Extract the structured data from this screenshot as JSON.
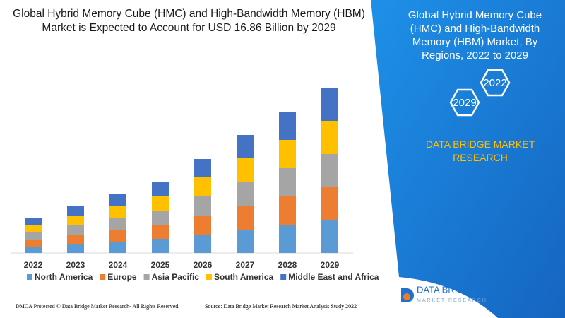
{
  "chart_data": {
    "type": "stacked_bar",
    "title": "Global Hybrid Memory Cube (HMC) and High-Bandwidth Memory (HBM) Market is Expected to Account for USD 16.86 Billion by 2029",
    "categories": [
      "2022",
      "2023",
      "2024",
      "2025",
      "2026",
      "2027",
      "2028",
      "2029"
    ],
    "series": [
      {
        "name": "North America",
        "color": "#5b9bd5",
        "values": [
          9,
          13,
          16,
          20,
          26,
          33,
          40,
          46
        ]
      },
      {
        "name": "Europe",
        "color": "#ed7d31",
        "values": [
          10,
          13,
          17,
          20,
          27,
          34,
          40,
          47
        ]
      },
      {
        "name": "Asia Pacific",
        "color": "#a5a5a5",
        "values": [
          10,
          13,
          17,
          20,
          27,
          33,
          40,
          47
        ]
      },
      {
        "name": "South America",
        "color": "#ffc000",
        "values": [
          10,
          14,
          17,
          20,
          27,
          34,
          40,
          47
        ]
      },
      {
        "name": "Middle East and Africa",
        "color": "#4472c4",
        "values": [
          10,
          13,
          16,
          20,
          26,
          33,
          40,
          46
        ]
      }
    ]
  },
  "side_panel": {
    "title": "Global Hybrid Memory Cube (HMC) and High-Bandwidth Memory (HBM) Market, By Regions, 2022 to 2029",
    "hex_start": "2022",
    "hex_end": "2029",
    "brand": "DATA BRIDGE MARKET RESEARCH"
  },
  "logo": {
    "name": "DATA BRIDGE",
    "tagline": "MARKET RESEARCH"
  },
  "footer": {
    "left": "DMCA Protected © Data Bridge Market Research- All Rights Reserved.",
    "right": "Source: Data Bridge Market Research Market Analysis Study 2022"
  }
}
